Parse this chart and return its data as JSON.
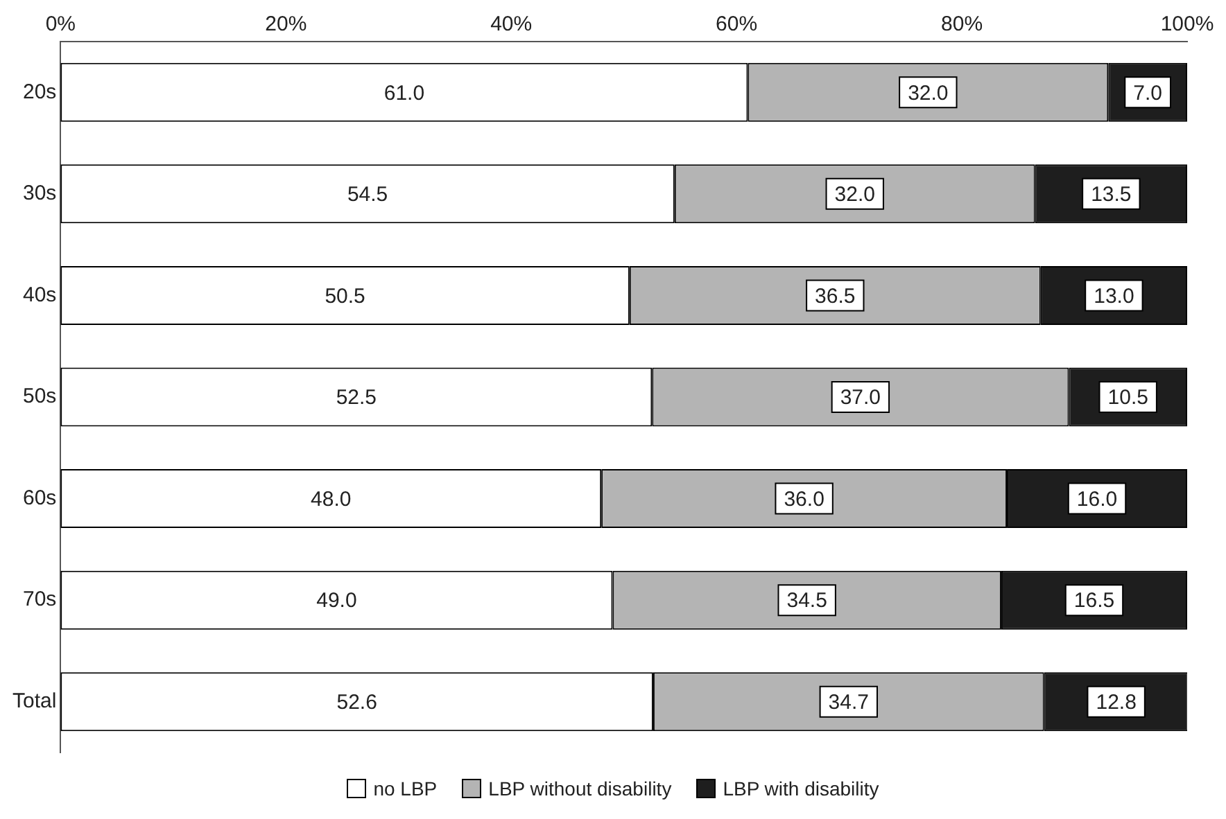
{
  "chart_data": {
    "type": "bar",
    "orientation": "horizontal",
    "stacked": true,
    "categories": [
      "20s",
      "30s",
      "40s",
      "50s",
      "60s",
      "70s",
      "Total"
    ],
    "series": [
      {
        "name": "no LBP",
        "color": "#ffffff",
        "values": [
          61.0,
          54.5,
          50.5,
          52.5,
          48.0,
          49.0,
          52.6
        ],
        "value_labels": [
          "61.0",
          "54.5",
          "50.5",
          "52.5",
          "48.0",
          "49.0",
          "52.6"
        ]
      },
      {
        "name": "LBP without disability",
        "color": "#b4b4b4",
        "values": [
          32.0,
          32.0,
          36.5,
          37.0,
          36.0,
          34.5,
          34.7
        ],
        "value_labels": [
          "32.0",
          "32.0",
          "36.5",
          "37.0",
          "36.0",
          "34.5",
          "34.7"
        ]
      },
      {
        "name": "LBP with disability",
        "color": "#1e1e1e",
        "values": [
          7.0,
          13.5,
          13.0,
          10.5,
          16.0,
          16.5,
          12.8
        ],
        "value_labels": [
          "7.0",
          "13.5",
          "13.0",
          "10.5",
          "16.0",
          "16.5",
          "12.8"
        ]
      }
    ],
    "xlim": [
      0,
      100
    ],
    "xticks": [
      {
        "value": 0,
        "label": "0%"
      },
      {
        "value": 20,
        "label": "20%"
      },
      {
        "value": 40,
        "label": "40%"
      },
      {
        "value": 60,
        "label": "60%"
      },
      {
        "value": 80,
        "label": "80%"
      },
      {
        "value": 100,
        "label": "100%"
      }
    ],
    "grid": false,
    "legend": "bottom"
  }
}
